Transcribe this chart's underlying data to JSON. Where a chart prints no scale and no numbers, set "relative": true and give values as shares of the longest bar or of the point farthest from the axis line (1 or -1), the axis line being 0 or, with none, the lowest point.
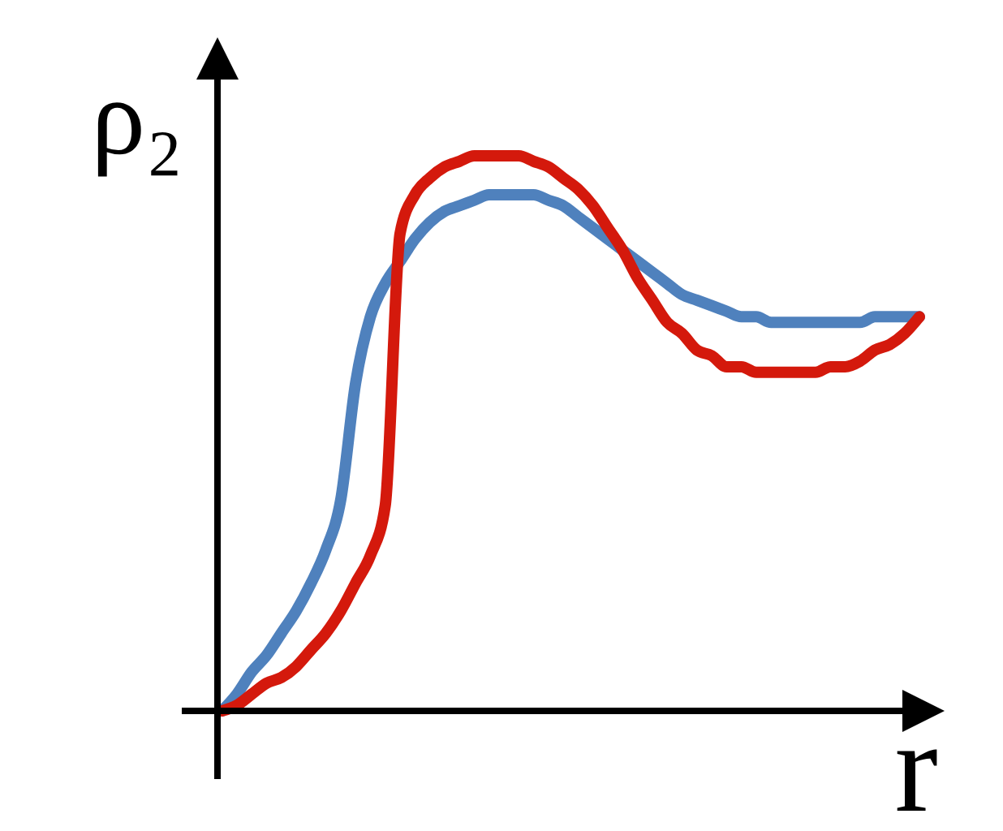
{
  "chart_data": {
    "type": "line",
    "relative": true,
    "xlabel": "r",
    "ylabel": "ρ₂",
    "categories": [
      null,
      null,
      null,
      null,
      null,
      null,
      null,
      null,
      null,
      null,
      null,
      null,
      null,
      null,
      null,
      null,
      null,
      null,
      null,
      null,
      null,
      null,
      null,
      null,
      null,
      null,
      null,
      null,
      null,
      null,
      null,
      null,
      null,
      null,
      null,
      null,
      null,
      null,
      null,
      null,
      null,
      null,
      null,
      null,
      null,
      null,
      null,
      null
    ],
    "series": [
      {
        "color": "#4f81bd",
        "values": [
          0,
          0.03,
          0.07,
          0.1,
          0.14,
          0.18,
          0.23,
          0.29,
          0.38,
          0.59,
          0.71,
          0.77,
          0.81,
          0.85,
          0.88,
          0.9,
          0.91,
          0.92,
          0.93,
          0.93,
          0.93,
          0.93,
          0.92,
          0.91,
          0.89,
          0.87,
          0.85,
          0.83,
          0.81,
          0.79,
          0.77,
          0.75,
          0.74,
          0.73,
          0.72,
          0.71,
          0.71,
          0.7,
          0.7,
          0.7,
          0.7,
          0.7,
          0.7,
          0.7,
          0.71,
          0.71,
          0.71,
          0.71
        ]
      },
      {
        "color": "#d4190c",
        "values": [
          0,
          0.01,
          0.03,
          0.05,
          0.06,
          0.08,
          0.11,
          0.14,
          0.18,
          0.23,
          0.28,
          0.37,
          0.86,
          0.93,
          0.96,
          0.98,
          0.99,
          1,
          1,
          1,
          1,
          0.99,
          0.98,
          0.96,
          0.94,
          0.91,
          0.87,
          0.83,
          0.78,
          0.74,
          0.7,
          0.68,
          0.65,
          0.64,
          0.62,
          0.62,
          0.61,
          0.61,
          0.61,
          0.61,
          0.61,
          0.62,
          0.62,
          0.63,
          0.65,
          0.66,
          0.68,
          0.71
        ]
      }
    ]
  }
}
